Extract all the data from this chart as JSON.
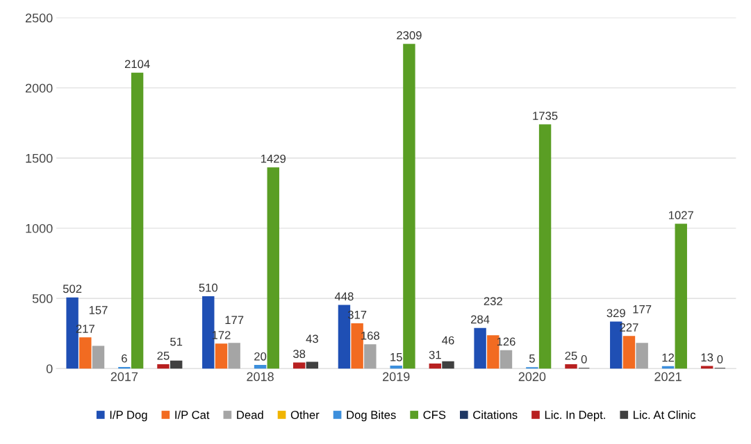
{
  "chart_data": {
    "type": "bar",
    "categories": [
      "2017",
      "2018",
      "2019",
      "2020",
      "2021"
    ],
    "series": [
      {
        "name": "I/P Dog",
        "color": "#1f4fb4",
        "values": [
          502,
          510,
          448,
          284,
          329
        ]
      },
      {
        "name": "I/P Cat",
        "color": "#f26b21",
        "values": [
          217,
          172,
          317,
          232,
          227
        ]
      },
      {
        "name": "Dead",
        "color": "#a5a5a5",
        "values": [
          157,
          177,
          168,
          126,
          177
        ]
      },
      {
        "name": "Other",
        "color": "#f0b400",
        "values": [
          null,
          null,
          null,
          null,
          null
        ]
      },
      {
        "name": "Dog Bites",
        "color": "#3c8fdc",
        "values": [
          6,
          20,
          15,
          5,
          12
        ]
      },
      {
        "name": "CFS",
        "color": "#5a9e24",
        "values": [
          2104,
          1429,
          2309,
          1735,
          1027
        ]
      },
      {
        "name": "Citations",
        "color": "#1f3864",
        "values": [
          null,
          null,
          null,
          null,
          null
        ]
      },
      {
        "name": "Lic. In Dept.",
        "color": "#b82020",
        "values": [
          25,
          38,
          31,
          25,
          13
        ]
      },
      {
        "name": "Lic. At Clinic",
        "color": "#404040",
        "values": [
          51,
          43,
          46,
          0,
          0
        ]
      }
    ],
    "ylim": [
      0,
      2500
    ],
    "yticks": [
      0,
      500,
      1000,
      1500,
      2000,
      2500
    ],
    "grid": "y",
    "legend": "bottom",
    "data_labels": true
  }
}
